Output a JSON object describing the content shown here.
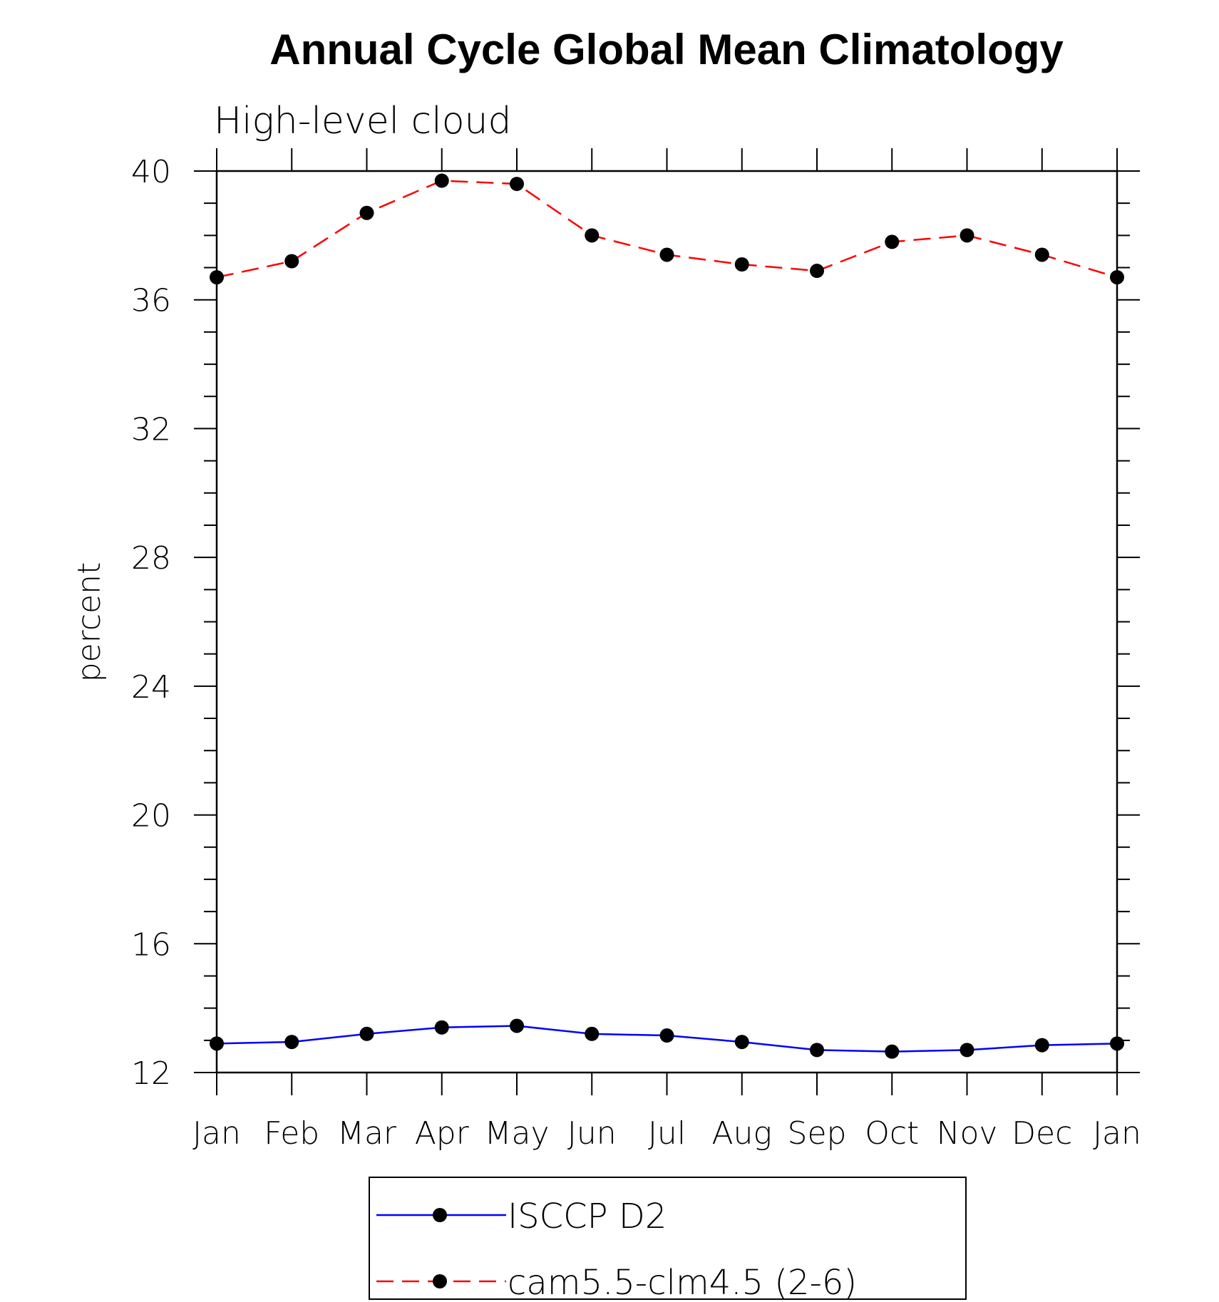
{
  "chart_data": {
    "type": "line",
    "title": "Annual Cycle Global Mean Climatology",
    "subtitle": "High-level cloud",
    "xlabel": "",
    "ylabel": "percent",
    "categories": [
      "Jan",
      "Feb",
      "Mar",
      "Apr",
      "May",
      "Jun",
      "Jul",
      "Aug",
      "Sep",
      "Oct",
      "Nov",
      "Dec",
      "Jan"
    ],
    "ylim": [
      12,
      40
    ],
    "yticks": [
      "12",
      "16",
      "20",
      "24",
      "28",
      "32",
      "36",
      "40"
    ],
    "series": [
      {
        "name": "ISCCP D2",
        "color": "#0000ff",
        "dash": "solid",
        "marker": "filled-circle",
        "values": [
          12.9,
          12.95,
          13.2,
          13.4,
          13.45,
          13.2,
          13.15,
          12.95,
          12.7,
          12.65,
          12.7,
          12.85,
          12.9
        ]
      },
      {
        "name": "cam5.5-clm4.5 (2-6)",
        "color": "#ff0000",
        "dash": "dashed",
        "marker": "filled-circle",
        "values": [
          36.7,
          37.2,
          38.7,
          39.7,
          39.6,
          38.0,
          37.4,
          37.1,
          36.9,
          37.8,
          38.0,
          37.4,
          36.7
        ]
      }
    ],
    "legend_position": "bottom-center"
  }
}
